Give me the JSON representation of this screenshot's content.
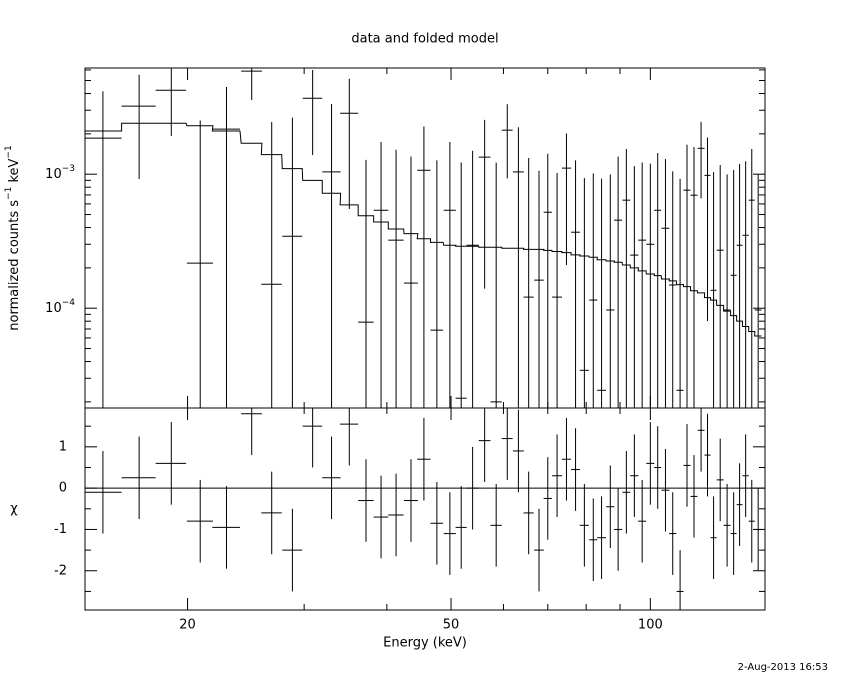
{
  "chart_data": [
    {
      "type": "spectrum",
      "title": "data and folded model",
      "ylabel": [
        "normalized counts s",
        "−1",
        " keV",
        "−1"
      ],
      "xlim": [
        14,
        149
      ],
      "xlog": true,
      "xticks": [
        20,
        50,
        100
      ],
      "xminorticks": [
        30,
        40,
        60,
        70,
        80,
        90
      ],
      "ylim": [
        1.8e-05,
        0.0062
      ],
      "ylog": true,
      "yticks": [
        {
          "value": 0.001,
          "label": "10",
          "exponent": "−3"
        },
        {
          "value": 0.0001,
          "label": "10",
          "exponent": "−4"
        }
      ],
      "yminorticks": [
        2e-05,
        3e-05,
        4e-05,
        5e-05,
        6e-05,
        7e-05,
        8e-05,
        9e-05,
        0.0002,
        0.0003,
        0.0004,
        0.0005,
        0.0006,
        0.0007,
        0.0008,
        0.0009,
        0.002,
        0.003,
        0.004,
        0.005,
        0.006
      ],
      "x": [
        14.9,
        16.9,
        18.9,
        20.9,
        22.9,
        25.0,
        26.8,
        28.8,
        30.9,
        33.0,
        35.1,
        37.2,
        39.2,
        41.3,
        43.5,
        45.5,
        47.6,
        49.8,
        51.8,
        53.9,
        56.2,
        58.5,
        60.8,
        63.2,
        65.5,
        67.9,
        70.0,
        72.3,
        74.7,
        77.1,
        79.5,
        82.0,
        84.4,
        87.0,
        89.4,
        92.0,
        94.6,
        97.2,
        100.0,
        102.6,
        105.4,
        108.1,
        110.9,
        113.6,
        116.4,
        119.3,
        122.0,
        124.6,
        127.5,
        130.6,
        133.6,
        136.4,
        139.3,
        142.3,
        145.5
      ],
      "xerr": [
        1.0,
        1.0,
        1.0,
        0.95,
        1.1,
        0.9,
        0.95,
        1.0,
        1.05,
        1.05,
        1.1,
        1.0,
        1.0,
        1.1,
        1.05,
        1.05,
        1.05,
        1.05,
        1.0,
        1.15,
        1.15,
        1.15,
        1.15,
        1.2,
        1.15,
        1.15,
        1.0,
        1.25,
        1.2,
        1.2,
        1.25,
        1.15,
        1.3,
        1.25,
        1.25,
        1.25,
        1.35,
        1.35,
        1.4,
        1.25,
        1.45,
        1.35,
        1.35,
        1.4,
        1.4,
        1.45,
        1.3,
        1.3,
        1.55,
        1.6,
        1.4,
        1.4,
        1.5,
        1.5,
        1.75
      ],
      "data": {
        "color": "#000000",
        "values": [
          0.00186,
          0.00322,
          0.00423,
          0.000217,
          0.00217,
          0.00587,
          0.000151,
          0.000344,
          0.00369,
          0.00104,
          0.00285,
          7.87e-05,
          0.000538,
          0.000322,
          0.000154,
          0.00107,
          6.86e-05,
          0.000538,
          2.13e-05,
          0.000295,
          0.00134,
          2e-05,
          0.00213,
          0.00104,
          0.000121,
          0.000162,
          0.00052,
          0.000121,
          0.00111,
          0.000369,
          3.44e-05,
          0.000115,
          2.44e-05,
          9.7e-05,
          0.000454,
          0.00064,
          0.000249,
          0.000322,
          0.0003,
          0.000538,
          0.000395,
          0.000149,
          2.44e-05,
          0.00076,
          0.000697,
          0.00156,
          0.00098,
          0.000136,
          0.000271,
          9.7e-05,
          0.000176,
          0.000295,
          0.00035,
          0.00064,
          9.7e-05
        ],
        "errors": [
          0.0023,
          0.0023,
          0.0023,
          0.0023,
          0.0023,
          0.0023,
          0.0023,
          0.0023,
          0.0023,
          0.0023,
          0.0023,
          0.0012,
          0.0012,
          0.0012,
          0.0012,
          0.0012,
          0.0012,
          0.0012,
          0.0012,
          0.0012,
          0.0012,
          0.0012,
          0.0012,
          0.0012,
          0.0012,
          0.0009,
          0.0009,
          0.0009,
          0.0009,
          0.0009,
          0.0009,
          0.0009,
          0.0009,
          0.0009,
          0.0009,
          0.0009,
          0.0009,
          0.0009,
          0.0009,
          0.0009,
          0.0009,
          0.0009,
          0.0009,
          0.0009,
          0.0009,
          0.0009,
          0.0009,
          0.0009,
          0.0009,
          0.0009,
          0.0009,
          0.0009,
          0.0009,
          0.0009,
          0.0009
        ]
      },
      "model": {
        "color": "#000000",
        "values": [
          0.0021,
          0.0024,
          0.0024,
          0.0023,
          0.0021,
          0.0017,
          0.0014,
          0.0011,
          0.0009,
          0.00072,
          0.00059,
          0.00049,
          0.00044,
          0.00039,
          0.00036,
          0.00033,
          0.00031,
          0.000295,
          0.00029,
          0.00029,
          0.000285,
          0.000285,
          0.00028,
          0.00028,
          0.000275,
          0.000275,
          0.00027,
          0.000265,
          0.00026,
          0.00025,
          0.000245,
          0.00024,
          0.00023,
          0.000225,
          0.00022,
          0.00021,
          0.0002,
          0.00019,
          0.00018,
          0.000175,
          0.000165,
          0.00016,
          0.00015,
          0.000145,
          0.000135,
          0.00013,
          0.00012,
          0.000115,
          0.000105,
          9.5e-05,
          8.8e-05,
          8e-05,
          7.3e-05,
          6.7e-05,
          6.2e-05
        ]
      }
    },
    {
      "type": "residuals",
      "ylabel": "χ",
      "xlabel": "Energy (keV)",
      "xlim": [
        14,
        149
      ],
      "xlog": true,
      "xticks": [
        20,
        50,
        100
      ],
      "xminorticks": [
        30,
        40,
        60,
        70,
        80,
        90
      ],
      "ylim": [
        -2.95,
        1.94
      ],
      "yticks": [
        -2,
        -1,
        0,
        1
      ],
      "yminorticks": [
        -2.5,
        -1.5,
        -0.5,
        0.5,
        1.5
      ],
      "zero_line": {
        "value": 0,
        "color": "#22dd22"
      },
      "color": "#000000",
      "values": [
        -0.1,
        0.25,
        0.6,
        -0.8,
        -0.95,
        1.8,
        -0.6,
        -1.5,
        1.5,
        0.25,
        1.55,
        -0.3,
        -0.7,
        -0.65,
        -0.3,
        0.7,
        -0.85,
        -1.1,
        -0.95,
        0,
        1.15,
        -0.9,
        1.2,
        0.9,
        -0.6,
        -1.5,
        -0.25,
        0.3,
        0.7,
        0.45,
        -0.9,
        -1.25,
        -1.2,
        -0.45,
        -1.0,
        -0.1,
        0.3,
        -0.8,
        0.6,
        0.5,
        -0.05,
        -1.1,
        -2.5,
        0.55,
        -0.2,
        1.4,
        0.8,
        -1.2,
        0.2,
        -0.9,
        -1.1,
        -0.4,
        0.3,
        -0.8,
        -1.0
      ],
      "errors": [
        1,
        1,
        1,
        1,
        1,
        1,
        1,
        1,
        1,
        1,
        1,
        1,
        1,
        1,
        1,
        1,
        1,
        1,
        1,
        1,
        1,
        1,
        1,
        1,
        1,
        1,
        1,
        1,
        1,
        1,
        1,
        1,
        1,
        1,
        1,
        1,
        1,
        1,
        1,
        1,
        1,
        1,
        1,
        1,
        1,
        1,
        1,
        1,
        1,
        1,
        1,
        1,
        1,
        1,
        1
      ]
    }
  ],
  "timestamp": "2-Aug-2013 16:53"
}
